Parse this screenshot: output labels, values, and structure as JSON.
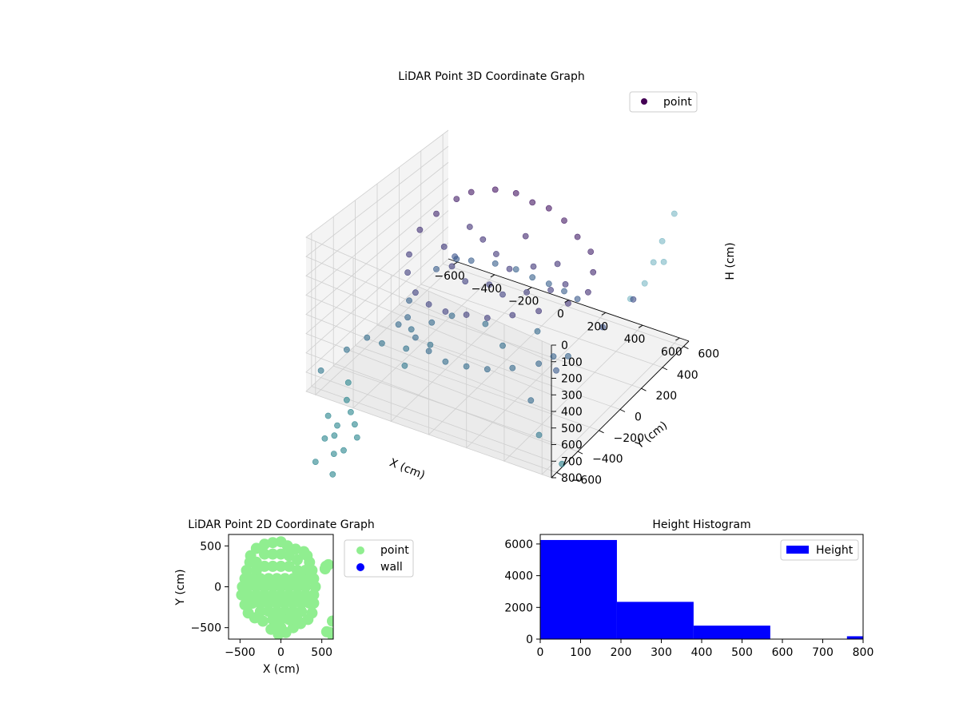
{
  "colors": {
    "point3d_dark": "#440154",
    "point3d_mid": "#3b528b",
    "point3d_light": "#5ec962",
    "point2d": "#90ee90",
    "wall": "#0000ff",
    "histogram_bar": "#0000ff"
  },
  "chart_data": [
    {
      "type": "scatter",
      "projection": "3d",
      "title": "LiDAR Point 3D Coordinate Graph",
      "xlabel": "X (cm)",
      "ylabel": "Y (cm)",
      "zlabel": "H (cm)",
      "xlim": [
        -650,
        650
      ],
      "ylim": [
        -650,
        650
      ],
      "zlim": [
        800,
        0
      ],
      "z_axis_inverted": true,
      "x_ticks": [
        "−600",
        "−400",
        "−200",
        "0",
        "200",
        "400",
        "600"
      ],
      "y_ticks": [
        "−600",
        "−400",
        "−200",
        "0",
        "200",
        "400",
        "600"
      ],
      "z_ticks": [
        "0",
        "100",
        "200",
        "300",
        "400",
        "500",
        "600",
        "700",
        "800"
      ],
      "legend": [
        "point"
      ],
      "legend_position": "top-right",
      "colormap": "viridis (colored by height)",
      "grid": true,
      "series": [
        {
          "name": "point",
          "points": [
            [
              -400,
              300,
              150
            ],
            [
              -350,
              350,
              120
            ],
            [
              -250,
              400,
              100
            ],
            [
              -150,
              420,
              100
            ],
            [
              -50,
              400,
              110
            ],
            [
              50,
              380,
              100
            ],
            [
              150,
              350,
              120
            ],
            [
              250,
              300,
              150
            ],
            [
              350,
              250,
              170
            ],
            [
              420,
              150,
              200
            ],
            [
              -450,
              200,
              200
            ],
            [
              -480,
              100,
              250
            ],
            [
              -450,
              -50,
              300
            ],
            [
              -400,
              -150,
              330
            ],
            [
              -300,
              -250,
              350
            ],
            [
              -200,
              -300,
              350
            ],
            [
              -100,
              -320,
              340
            ],
            [
              0,
              -300,
              330
            ],
            [
              100,
              -280,
              320
            ],
            [
              200,
              -220,
              300
            ],
            [
              300,
              -150,
              280
            ],
            [
              400,
              -50,
              260
            ],
            [
              450,
              50,
              240
            ],
            [
              -300,
              250,
              250
            ],
            [
              -200,
              200,
              260
            ],
            [
              -100,
              150,
              280
            ],
            [
              0,
              100,
              300
            ],
            [
              100,
              150,
              280
            ],
            [
              200,
              200,
              260
            ],
            [
              -250,
              0,
              320
            ],
            [
              -150,
              -50,
              340
            ],
            [
              -50,
              0,
              350
            ],
            [
              50,
              -50,
              340
            ],
            [
              150,
              0,
              320
            ],
            [
              250,
              50,
              300
            ],
            [
              0,
              250,
              200
            ],
            [
              -350,
              100,
              300
            ],
            [
              300,
              100,
              280
            ],
            [
              -400,
              300,
              500
            ],
            [
              -350,
              350,
              520
            ],
            [
              -250,
              400,
              530
            ],
            [
              -150,
              420,
              540
            ],
            [
              -50,
              400,
              540
            ],
            [
              50,
              380,
              530
            ],
            [
              150,
              350,
              520
            ],
            [
              250,
              300,
              500
            ],
            [
              -450,
              200,
              520
            ],
            [
              -450,
              -50,
              560
            ],
            [
              -400,
              -150,
              580
            ],
            [
              -300,
              -250,
              600
            ],
            [
              -200,
              -300,
              610
            ],
            [
              -100,
              -320,
              620
            ],
            [
              0,
              -300,
              620
            ],
            [
              100,
              -280,
              610
            ],
            [
              200,
              -220,
              600
            ],
            [
              300,
              -150,
              580
            ],
            [
              400,
              -50,
              560
            ],
            [
              -250,
              0,
              600
            ],
            [
              -100,
              50,
              620
            ],
            [
              50,
              -50,
              630
            ],
            [
              150,
              100,
              600
            ],
            [
              600,
              600,
              100
            ],
            [
              620,
              450,
              150
            ],
            [
              630,
              350,
              200
            ],
            [
              640,
              250,
              250
            ],
            [
              620,
              150,
              280
            ],
            [
              600,
              500,
              300
            ],
            [
              550,
              300,
              400
            ],
            [
              -600,
              -600,
              700
            ],
            [
              -550,
              -450,
              650
            ],
            [
              -500,
              -350,
              620
            ],
            [
              -450,
              -300,
              660
            ],
            [
              -420,
              -200,
              600
            ],
            [
              -380,
              -150,
              640
            ],
            [
              -350,
              -250,
              680
            ],
            [
              -300,
              -350,
              700
            ],
            [
              -250,
              -200,
              650
            ],
            [
              -300,
              -100,
              600
            ],
            [
              -600,
              -350,
              900
            ],
            [
              -550,
              -450,
              920
            ],
            [
              -500,
              -500,
              940
            ],
            [
              -450,
              -550,
              960
            ],
            [
              -500,
              -650,
              980
            ],
            [
              -620,
              -500,
              1000
            ],
            [
              -580,
              -600,
              1050
            ],
            [
              -520,
              -620,
              1100
            ],
            [
              -480,
              -600,
              1080
            ],
            [
              -560,
              -520,
              1020
            ],
            [
              -380,
              -650,
              950
            ],
            [
              -600,
              -650,
              1150
            ],
            [
              -480,
              -700,
              1150
            ],
            [
              450,
              -250,
              500
            ],
            [
              400,
              -400,
              600
            ],
            [
              350,
              -100,
              550
            ],
            [
              500,
              -500,
              700
            ],
            [
              650,
              -550,
              780
            ],
            [
              -380,
              250,
              450
            ],
            [
              500,
              100,
              450
            ]
          ]
        }
      ]
    },
    {
      "type": "scatter",
      "title": "LiDAR Point 2D Coordinate Graph",
      "xlabel": "X (cm)",
      "ylabel": "Y (cm)",
      "xlim": [
        -640,
        640
      ],
      "ylim": [
        -640,
        640
      ],
      "x_ticks": [
        "−500",
        "0",
        "500"
      ],
      "y_ticks": [
        "500",
        "0",
        "−500"
      ],
      "legend": [
        "point",
        "wall"
      ],
      "legend_position": "outside-right",
      "grid": false,
      "series": [
        {
          "name": "point",
          "points": [
            [
              -370,
              380
            ],
            [
              -300,
              470
            ],
            [
              -200,
              520
            ],
            [
              -100,
              540
            ],
            [
              0,
              550
            ],
            [
              80,
              500
            ],
            [
              180,
              460
            ],
            [
              280,
              430
            ],
            [
              320,
              380
            ],
            [
              350,
              300
            ],
            [
              380,
              200
            ],
            [
              400,
              100
            ],
            [
              420,
              0
            ],
            [
              400,
              -100
            ],
            [
              400,
              -200
            ],
            [
              380,
              -320
            ],
            [
              330,
              -400
            ],
            [
              240,
              -450
            ],
            [
              150,
              -500
            ],
            [
              60,
              -560
            ],
            [
              -30,
              -580
            ],
            [
              -120,
              -520
            ],
            [
              -220,
              -420
            ],
            [
              -320,
              -380
            ],
            [
              -400,
              -320
            ],
            [
              -440,
              -220
            ],
            [
              -480,
              -100
            ],
            [
              -470,
              0
            ],
            [
              -440,
              100
            ],
            [
              -420,
              200
            ],
            [
              -380,
              300
            ],
            [
              -300,
              300
            ],
            [
              -200,
              400
            ],
            [
              -100,
              400
            ],
            [
              0,
              400
            ],
            [
              100,
              380
            ],
            [
              200,
              330
            ],
            [
              -300,
              200
            ],
            [
              -200,
              250
            ],
            [
              -100,
              250
            ],
            [
              0,
              250
            ],
            [
              100,
              250
            ],
            [
              200,
              200
            ],
            [
              300,
              200
            ],
            [
              -350,
              100
            ],
            [
              -250,
              100
            ],
            [
              -150,
              100
            ],
            [
              -50,
              100
            ],
            [
              50,
              100
            ],
            [
              150,
              100
            ],
            [
              250,
              100
            ],
            [
              350,
              100
            ],
            [
              -400,
              0
            ],
            [
              -300,
              0
            ],
            [
              -200,
              0
            ],
            [
              -100,
              0
            ],
            [
              0,
              0
            ],
            [
              100,
              0
            ],
            [
              200,
              0
            ],
            [
              300,
              0
            ],
            [
              -400,
              -100
            ],
            [
              -300,
              -100
            ],
            [
              -200,
              -100
            ],
            [
              -100,
              -100
            ],
            [
              0,
              -100
            ],
            [
              100,
              -100
            ],
            [
              200,
              -100
            ],
            [
              300,
              -100
            ],
            [
              -350,
              -200
            ],
            [
              -250,
              -200
            ],
            [
              -150,
              -200
            ],
            [
              -50,
              -200
            ],
            [
              50,
              -200
            ],
            [
              150,
              -200
            ],
            [
              250,
              -200
            ],
            [
              350,
              -200
            ],
            [
              -250,
              -300
            ],
            [
              -150,
              -300
            ],
            [
              -50,
              -300
            ],
            [
              50,
              -300
            ],
            [
              150,
              -300
            ],
            [
              250,
              -300
            ],
            [
              -100,
              -400
            ],
            [
              0,
              -400
            ],
            [
              100,
              -400
            ],
            [
              200,
              -400
            ],
            [
              0,
              -500
            ],
            [
              -50,
              -480
            ],
            [
              550,
              250
            ],
            [
              580,
              270
            ],
            [
              540,
              220
            ],
            [
              630,
              -420
            ],
            [
              560,
              -550
            ],
            [
              600,
              -560
            ],
            [
              640,
              -620
            ]
          ]
        },
        {
          "name": "wall",
          "points": []
        }
      ]
    },
    {
      "type": "bar",
      "subtype": "histogram",
      "title": "Height Histogram",
      "legend": [
        "Height"
      ],
      "legend_position": "top-right",
      "xlim": [
        0,
        800
      ],
      "ylim": [
        0,
        6600
      ],
      "x_ticks": [
        "0",
        "100",
        "200",
        "300",
        "400",
        "500",
        "600",
        "700",
        "800"
      ],
      "y_ticks": [
        "0",
        "2000",
        "4000",
        "6000"
      ],
      "grid": false,
      "bins": [
        {
          "start": 0,
          "end": 190,
          "count": 6250
        },
        {
          "start": 190,
          "end": 380,
          "count": 2350
        },
        {
          "start": 380,
          "end": 570,
          "count": 850
        },
        {
          "start": 570,
          "end": 760,
          "count": 0
        },
        {
          "start": 760,
          "end": 800,
          "count": 180
        }
      ]
    }
  ]
}
